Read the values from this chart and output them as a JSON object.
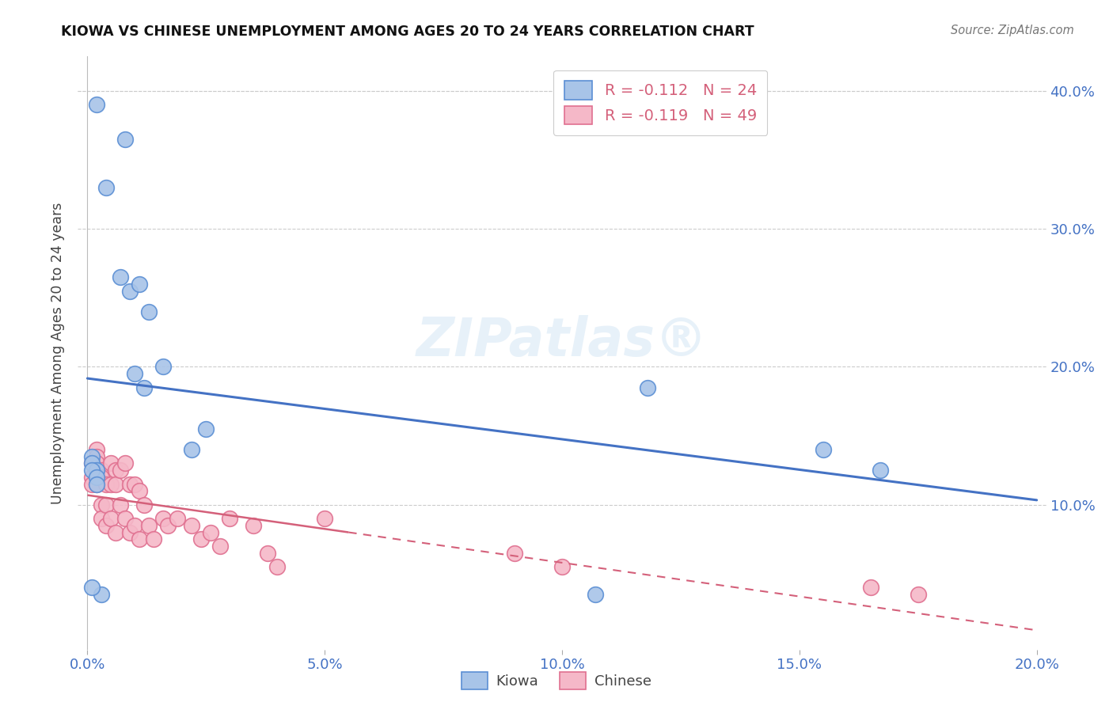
{
  "title": "KIOWA VS CHINESE UNEMPLOYMENT AMONG AGES 20 TO 24 YEARS CORRELATION CHART",
  "source": "Source: ZipAtlas.com",
  "ylabel": "Unemployment Among Ages 20 to 24 years",
  "watermark": "ZIPatlas®",
  "xlim": [
    -0.002,
    0.202
  ],
  "ylim": [
    -0.005,
    0.425
  ],
  "xticks": [
    0.0,
    0.05,
    0.1,
    0.15,
    0.2
  ],
  "yticks_right": [
    0.1,
    0.2,
    0.3,
    0.4
  ],
  "yticks_left": [
    0.1,
    0.2,
    0.3,
    0.4
  ],
  "kiowa_color": "#a8c4e8",
  "chinese_color": "#f5b8c8",
  "kiowa_edge_color": "#5b8fd4",
  "chinese_edge_color": "#e07090",
  "kiowa_line_color": "#4472c4",
  "chinese_line_color": "#d4607a",
  "legend_label_kiowa": "R = -0.112   N = 24",
  "legend_label_chinese": "R = -0.119   N = 49",
  "kiowa_x": [
    0.002,
    0.008,
    0.004,
    0.007,
    0.009,
    0.011,
    0.013,
    0.01,
    0.012,
    0.016,
    0.025,
    0.022,
    0.001,
    0.001,
    0.002,
    0.118,
    0.155,
    0.167,
    0.107,
    0.003,
    0.001,
    0.002,
    0.002,
    0.001
  ],
  "kiowa_y": [
    0.39,
    0.365,
    0.33,
    0.265,
    0.255,
    0.26,
    0.24,
    0.195,
    0.185,
    0.2,
    0.155,
    0.14,
    0.135,
    0.13,
    0.125,
    0.185,
    0.14,
    0.125,
    0.035,
    0.035,
    0.125,
    0.12,
    0.115,
    0.04
  ],
  "chinese_x": [
    0.001,
    0.001,
    0.001,
    0.002,
    0.002,
    0.002,
    0.002,
    0.003,
    0.003,
    0.003,
    0.003,
    0.004,
    0.004,
    0.004,
    0.005,
    0.005,
    0.005,
    0.006,
    0.006,
    0.006,
    0.007,
    0.007,
    0.008,
    0.008,
    0.009,
    0.009,
    0.01,
    0.01,
    0.011,
    0.011,
    0.012,
    0.013,
    0.014,
    0.016,
    0.017,
    0.019,
    0.022,
    0.024,
    0.026,
    0.028,
    0.03,
    0.035,
    0.038,
    0.04,
    0.05,
    0.09,
    0.1,
    0.165,
    0.175
  ],
  "chinese_y": [
    0.13,
    0.12,
    0.115,
    0.14,
    0.135,
    0.13,
    0.115,
    0.125,
    0.12,
    0.1,
    0.09,
    0.115,
    0.1,
    0.085,
    0.13,
    0.115,
    0.09,
    0.125,
    0.115,
    0.08,
    0.125,
    0.1,
    0.13,
    0.09,
    0.115,
    0.08,
    0.115,
    0.085,
    0.11,
    0.075,
    0.1,
    0.085,
    0.075,
    0.09,
    0.085,
    0.09,
    0.085,
    0.075,
    0.08,
    0.07,
    0.09,
    0.085,
    0.065,
    0.055,
    0.09,
    0.065,
    0.055,
    0.04,
    0.035
  ],
  "chinese_solid_xlim": 0.055,
  "background_color": "#ffffff",
  "grid_color": "#cccccc"
}
